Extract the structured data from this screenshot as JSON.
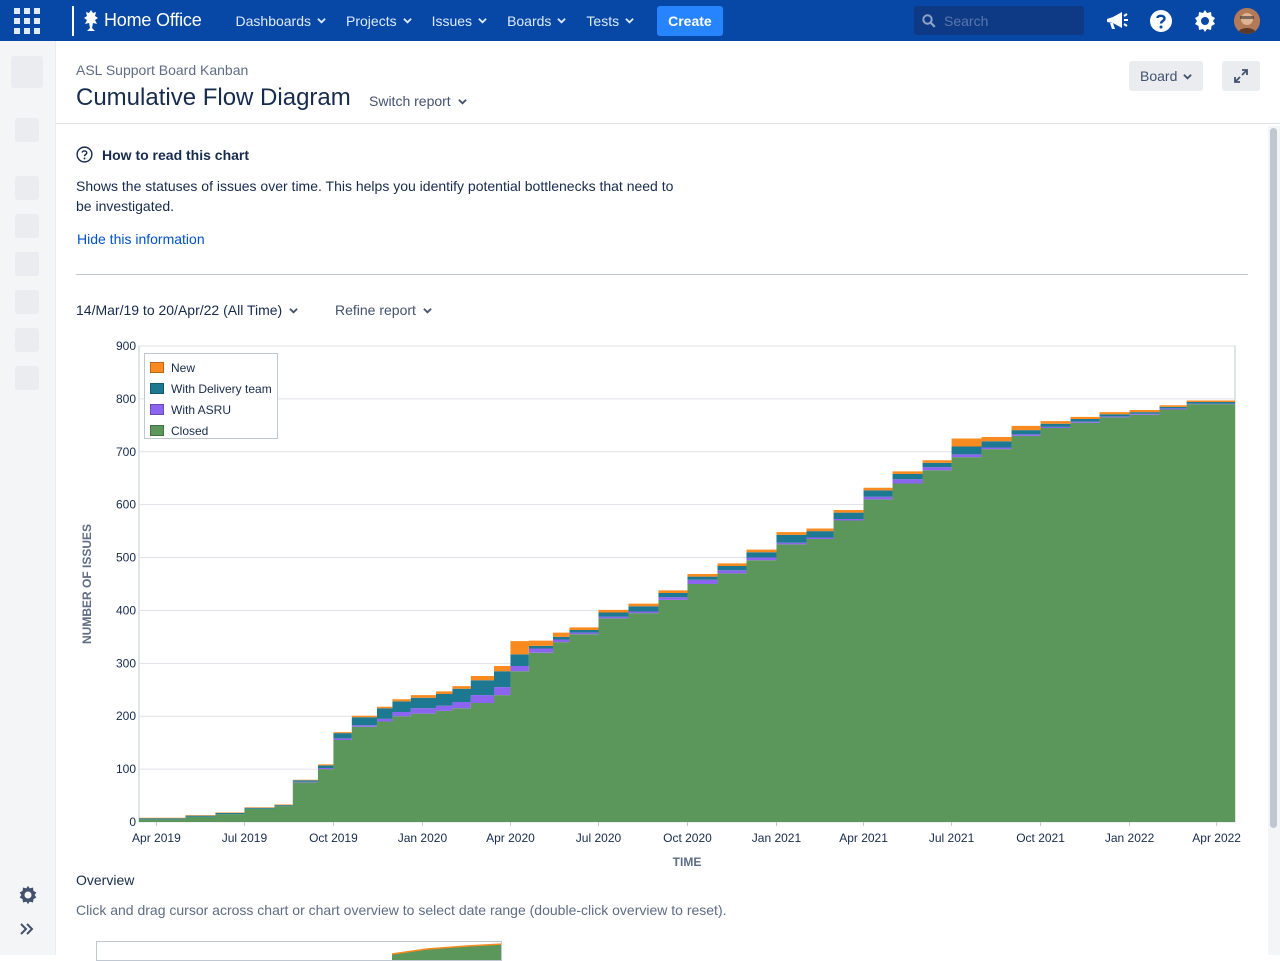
{
  "topnav": {
    "brand": "Home Office",
    "menu": [
      {
        "label": "Dashboards"
      },
      {
        "label": "Projects"
      },
      {
        "label": "Issues"
      },
      {
        "label": "Boards"
      },
      {
        "label": "Tests"
      }
    ],
    "create_label": "Create",
    "search_placeholder": "Search",
    "colors": {
      "bar": "#0747a6",
      "create": "#2684ff"
    },
    "icons": [
      "app-switcher-icon",
      "megaphone-icon",
      "help-icon",
      "settings-icon",
      "avatar"
    ]
  },
  "page": {
    "breadcrumb": "ASL Support Board Kanban",
    "title": "Cumulative Flow Diagram",
    "switch_report": "Switch report",
    "board_button": "Board"
  },
  "info": {
    "title": "How to read this chart",
    "description": "Shows the statuses of issues over time. This helps you identify potential bottlenecks that need to be investigated.",
    "hide_link": "Hide this information"
  },
  "filters": {
    "date_range": "14/Mar/19 to 20/Apr/22 (All Time)",
    "refine": "Refine report"
  },
  "overview": {
    "title": "Overview",
    "hint": "Click and drag cursor across chart or chart overview to select date range (double-click overview to reset)."
  },
  "chart_data": {
    "type": "area",
    "stacked": true,
    "xlabel": "TIME",
    "ylabel": "NUMBER OF ISSUES",
    "ylim": [
      0,
      900
    ],
    "yticks": [
      0,
      100,
      200,
      300,
      400,
      500,
      600,
      700,
      800,
      900
    ],
    "xticks": [
      "Apr 2019",
      "Jul 2019",
      "Oct 2019",
      "Jan 2020",
      "Apr 2020",
      "Jul 2020",
      "Oct 2020",
      "Jan 2021",
      "Apr 2021",
      "Jul 2021",
      "Oct 2021",
      "Jan 2022",
      "Apr 2022"
    ],
    "xlim": [
      "2019-03-14",
      "2022-04-20"
    ],
    "legend_position": "top-left",
    "grid": true,
    "x": [
      "2019-03-14",
      "2019-05-01",
      "2019-06-01",
      "2019-07-01",
      "2019-08-01",
      "2019-08-20",
      "2019-09-15",
      "2019-10-01",
      "2019-10-20",
      "2019-11-15",
      "2019-12-01",
      "2019-12-20",
      "2020-01-15",
      "2020-02-01",
      "2020-02-20",
      "2020-03-15",
      "2020-04-01",
      "2020-04-20",
      "2020-05-15",
      "2020-06-01",
      "2020-07-01",
      "2020-08-01",
      "2020-09-01",
      "2020-10-01",
      "2020-11-01",
      "2020-12-01",
      "2021-01-01",
      "2021-02-01",
      "2021-03-01",
      "2021-04-01",
      "2021-05-01",
      "2021-06-01",
      "2021-07-01",
      "2021-08-01",
      "2021-09-01",
      "2021-10-01",
      "2021-11-01",
      "2021-12-01",
      "2022-01-01",
      "2022-02-01",
      "2022-03-01",
      "2022-04-20"
    ],
    "series": [
      {
        "name": "Closed",
        "color": "#5b965a",
        "values": [
          5,
          10,
          15,
          25,
          30,
          75,
          100,
          155,
          180,
          190,
          200,
          205,
          210,
          215,
          225,
          240,
          285,
          320,
          340,
          355,
          385,
          395,
          420,
          450,
          470,
          495,
          525,
          535,
          570,
          610,
          640,
          665,
          690,
          705,
          730,
          745,
          755,
          765,
          770,
          780,
          790,
          800
        ]
      },
      {
        "name": "With ASRU",
        "color": "#8b64f0",
        "values": [
          0,
          0,
          0,
          0,
          0,
          1,
          2,
          3,
          3,
          5,
          8,
          10,
          10,
          12,
          15,
          15,
          10,
          8,
          5,
          3,
          3,
          3,
          5,
          8,
          6,
          5,
          3,
          3,
          3,
          5,
          8,
          6,
          5,
          3,
          3,
          2,
          2,
          2,
          2,
          2,
          1,
          1
        ]
      },
      {
        "name": "With Delivery team",
        "color": "#1d7891",
        "values": [
          2,
          2,
          2,
          2,
          2,
          3,
          5,
          10,
          15,
          20,
          20,
          20,
          22,
          25,
          28,
          30,
          22,
          5,
          5,
          5,
          8,
          10,
          8,
          6,
          8,
          10,
          15,
          12,
          12,
          12,
          10,
          8,
          15,
          12,
          8,
          6,
          5,
          4,
          3,
          3,
          3,
          2
        ]
      },
      {
        "name": "New",
        "color": "#f98a1f",
        "values": [
          1,
          1,
          1,
          1,
          1,
          1,
          2,
          2,
          3,
          3,
          4,
          5,
          5,
          5,
          8,
          10,
          25,
          10,
          8,
          5,
          5,
          5,
          5,
          5,
          5,
          5,
          5,
          5,
          5,
          5,
          5,
          5,
          15,
          8,
          8,
          5,
          4,
          4,
          4,
          3,
          3,
          3
        ]
      }
    ]
  }
}
